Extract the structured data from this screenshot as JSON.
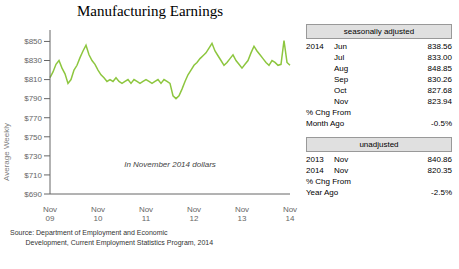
{
  "chart_data": {
    "type": "line",
    "title": "Manufacturing Earnings",
    "ylabel": "Average Weekly",
    "annotation": "In November 2014 dollars",
    "source": "Source: Department of Employment and Economic\n        Development, Current Employment Statistics Program, 2014",
    "color": "#8dc63f",
    "categories": [
      "Nov\n09",
      null,
      null,
      null,
      null,
      null,
      null,
      null,
      null,
      null,
      null,
      null,
      null,
      null,
      null,
      null,
      "Nov\n10",
      null,
      null,
      null,
      null,
      null,
      null,
      null,
      null,
      null,
      null,
      null,
      null,
      null,
      null,
      null,
      "Nov\n11",
      null,
      null,
      null,
      null,
      null,
      null,
      null,
      null,
      null,
      null,
      null,
      null,
      null,
      null,
      null,
      "Nov\n12",
      null,
      null,
      null,
      null,
      null,
      null,
      null,
      null,
      null,
      null,
      null,
      null,
      null,
      null,
      null,
      "Nov\n13",
      null,
      null,
      null,
      null,
      null,
      null,
      null,
      null,
      null,
      null,
      null,
      null,
      null,
      null,
      null,
      "Nov\n14"
    ],
    "values": [
      812,
      818,
      826,
      830,
      822,
      816,
      806,
      810,
      820,
      825,
      833,
      840,
      846,
      836,
      830,
      826,
      820,
      815,
      812,
      808,
      810,
      808,
      812,
      808,
      806,
      808,
      810,
      806,
      810,
      808,
      806,
      808,
      810,
      808,
      806,
      808,
      810,
      806,
      810,
      808,
      806,
      793,
      790,
      793,
      800,
      808,
      815,
      820,
      825,
      828,
      832,
      835,
      838,
      843,
      848,
      840,
      835,
      830,
      825,
      828,
      832,
      836,
      830,
      826,
      822,
      826,
      830,
      838,
      845,
      840,
      836,
      832,
      828,
      825,
      830,
      828,
      825,
      826,
      851,
      828,
      825
    ],
    "ylim": [
      690,
      862
    ],
    "yticks": [
      {
        "value": 690,
        "label": "$690"
      },
      {
        "value": 710,
        "label": "$710"
      },
      {
        "value": 730,
        "label": "$730"
      },
      {
        "value": 750,
        "label": "$750"
      },
      {
        "value": 770,
        "label": "$770"
      },
      {
        "value": 790,
        "label": "$790"
      },
      {
        "value": 810,
        "label": "$810"
      },
      {
        "value": 830,
        "label": "$830"
      },
      {
        "value": 850,
        "label": "$850"
      }
    ],
    "grid": false,
    "panels": [
      {
        "header": "seasonally adjusted",
        "rows": [
          [
            "2014",
            "Jun",
            "838.56"
          ],
          [
            null,
            "Jul",
            "833.00"
          ],
          [
            null,
            "Aug",
            "848.85"
          ],
          [
            null,
            "Sep",
            "830.26"
          ],
          [
            null,
            "Oct",
            "827.68"
          ],
          [
            null,
            "Nov",
            "823.94"
          ],
          [
            "% Chg From",
            null,
            null
          ],
          [
            "Month Ago",
            null,
            "-0.5%"
          ]
        ]
      },
      {
        "header": "unadjusted",
        "rows": [
          [
            "2013",
            "Nov",
            "840.86"
          ],
          [
            "2014",
            "Nov",
            "820.35"
          ],
          [
            "% Chg From",
            null,
            null
          ],
          [
            "Year Ago",
            null,
            "-2.5%"
          ]
        ]
      }
    ]
  }
}
